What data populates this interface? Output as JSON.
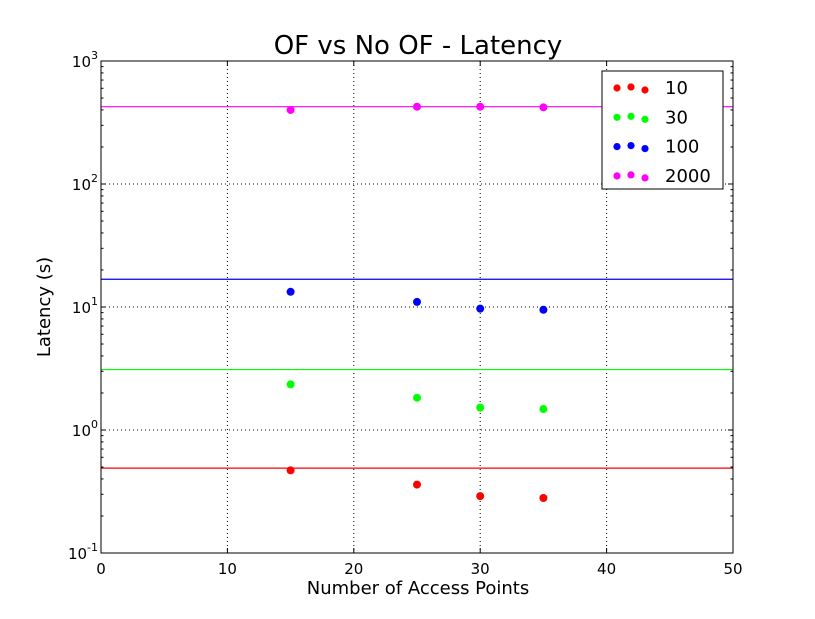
{
  "chart_data": {
    "type": "scatter",
    "title": "OF vs No OF - Latency",
    "xlabel": "Number of Access Points",
    "ylabel": "Latency (s)",
    "xlim": [
      0,
      50
    ],
    "ylim": [
      0.1,
      1000
    ],
    "yscale": "log",
    "grid": true,
    "legend_position": "top-right",
    "x_ticks": [
      0,
      10,
      20,
      30,
      40,
      50
    ],
    "x_tick_labels": [
      "0",
      "10",
      "20",
      "30",
      "40",
      "50"
    ],
    "y_ticks": [
      0.1,
      1,
      10,
      100,
      1000
    ],
    "y_tick_bases": [
      "10",
      "10",
      "10",
      "10",
      "10"
    ],
    "y_tick_exponents": [
      "-1",
      "0",
      "1",
      "2",
      "3"
    ],
    "x": [
      15,
      25,
      30,
      35
    ],
    "series": [
      {
        "name": "10",
        "color": "#ff0000",
        "values": [
          0.47,
          0.36,
          0.29,
          0.28
        ],
        "reference_line": 0.49
      },
      {
        "name": "30",
        "color": "#00ff00",
        "values": [
          2.35,
          1.83,
          1.52,
          1.48
        ],
        "reference_line": 3.1
      },
      {
        "name": "100",
        "color": "#0000ff",
        "values": [
          13.3,
          11.0,
          9.7,
          9.5
        ],
        "reference_line": 16.8
      },
      {
        "name": "2000",
        "color": "#ff00ff",
        "values": [
          400,
          425,
          425,
          420
        ],
        "reference_line": 425
      }
    ]
  }
}
